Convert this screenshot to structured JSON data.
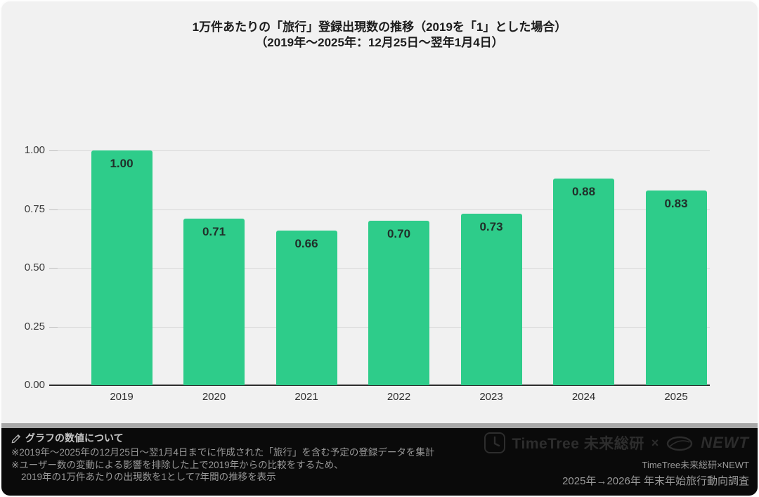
{
  "title": {
    "line1": "1万件あたりの「旅行」登録出現数の推移（2019を「1」とした場合）",
    "line2": "（2019年～2025年：12月25日～翌年1月4日）"
  },
  "chart_data": {
    "type": "bar",
    "categories": [
      "2019",
      "2020",
      "2021",
      "2022",
      "2023",
      "2024",
      "2025"
    ],
    "values": [
      1.0,
      0.71,
      0.66,
      0.7,
      0.73,
      0.88,
      0.83
    ],
    "value_labels": [
      "1.00",
      "0.71",
      "0.66",
      "0.70",
      "0.73",
      "0.88",
      "0.83"
    ],
    "title": "1万件あたりの「旅行」登録出現数の推移（2019を「1」とした場合）",
    "subtitle": "（2019年～2025年：12月25日～翌年1月4日）",
    "xlabel": "",
    "ylabel": "",
    "ylim": [
      0,
      1.0
    ],
    "yticks": [
      "0.00",
      "0.25",
      "0.50",
      "0.75",
      "1.00"
    ],
    "grid": "horizontal",
    "bar_color": "#2ecc8a",
    "background_color": "#f1f1f1"
  },
  "footer": {
    "heading": "グラフの数値について",
    "notes": [
      "※2019年～2025年の12月25日～翌1月4日までに作成された「旅行」を含む予定の登録データを集計",
      "※ユーザー数の変動による影響を排除した上で2019年からの比較をするため、",
      "2019年の1万件あたりの出現数を1として7年間の推移を表示"
    ],
    "logos": {
      "timetree": "TimeTree 未来総研",
      "separator": "×",
      "newt": "NEWT"
    },
    "credit_line1": "TimeTree未来総研×NEWT",
    "credit_line2": "2025年→2026年 年末年始旅行動向調査"
  }
}
